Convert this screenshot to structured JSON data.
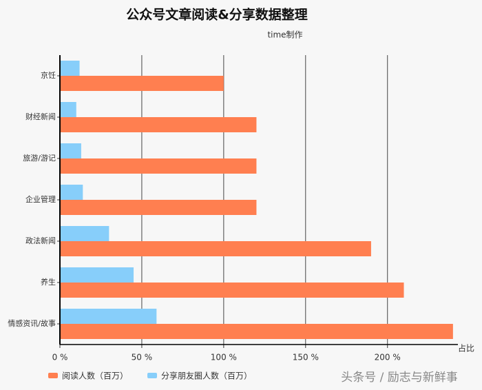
{
  "chart_data": {
    "type": "hbar",
    "title": "公众号文章阅读&分享数据整理",
    "subtitle": "time制作",
    "x_label": "占比",
    "watermark": "头条号 / 励志与新鲜事",
    "categories": [
      "京饪",
      "财经新闻",
      "旅游/游记",
      "企业管理",
      "政法新闻",
      "养生",
      "情感资讯/故事"
    ],
    "series": [
      {
        "name": "分享朋友圈人数（百万）",
        "color": "#87cefa",
        "values": [
          12,
          10,
          13,
          14,
          30,
          45,
          59
        ]
      },
      {
        "name": "阅读人数（百万）",
        "color": "#ff7f50",
        "values": [
          100,
          120,
          120,
          120,
          190,
          210,
          240
        ]
      }
    ],
    "xlim": [
      0,
      243
    ],
    "xticks": [
      {
        "value": 0,
        "label": "0 %"
      },
      {
        "value": 50,
        "label": "50 %"
      },
      {
        "value": 100,
        "label": "100 %"
      },
      {
        "value": 150,
        "label": "150 %"
      },
      {
        "value": 200,
        "label": "200 %"
      }
    ],
    "grid": true
  }
}
